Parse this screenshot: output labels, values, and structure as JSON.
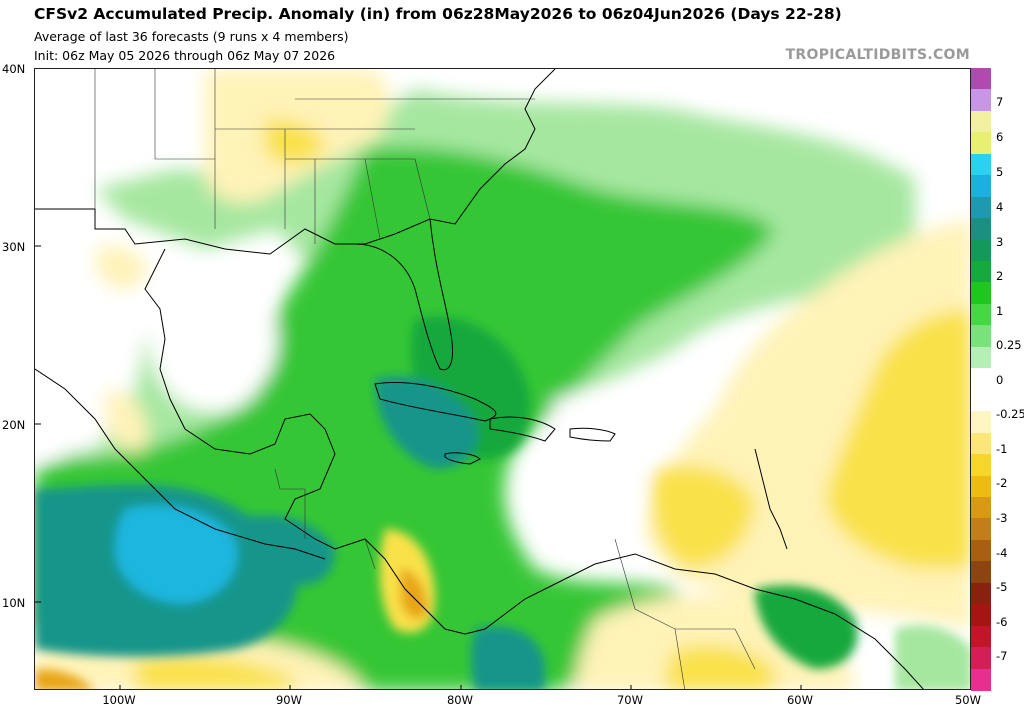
{
  "header": {
    "title": "CFSv2 Accumulated Precip. Anomaly (in) from 06z28May2026 to 06z04Jun2026 (Days 22-28)",
    "subtitle1": "Average of last 36 forecasts (9 runs x 4 members)",
    "subtitle2": "Init: 06z May 05 2026 through 06z May 07 2026",
    "credit": "TROPICALTIDBITS.COM"
  },
  "axes": {
    "lat_labels": [
      "40N",
      "30N",
      "20N",
      "10N"
    ],
    "lon_labels": [
      "100W",
      "90W",
      "80W",
      "70W",
      "60W",
      "50W"
    ]
  },
  "colorbar": {
    "labels": [
      "7",
      "6",
      "5",
      "4",
      "3",
      "2",
      "1",
      "0.25",
      "0",
      "-0.25",
      "-1",
      "-2",
      "-3",
      "-4",
      "-5",
      "-6",
      "-7"
    ],
    "colors": [
      "#b04ab0",
      "#c896e6",
      "#f0f0a0",
      "#e8f070",
      "#2ad2f2",
      "#1ab0e0",
      "#1d9ab0",
      "#1a9080",
      "#129a5a",
      "#14aa3c",
      "#1cc81c",
      "#44d844",
      "#7ae27a",
      "#b6efb6",
      "#ffffff",
      "#ffffff",
      "#fff5c0",
      "#fce678",
      "#f8d628",
      "#eebb10",
      "#d89a12",
      "#c27e18",
      "#a86010",
      "#8c4410",
      "#8a2010",
      "#a61414",
      "#c4142a",
      "#d61e56",
      "#ea2e90"
    ]
  },
  "map_colors": {
    "land_white": "#ffffff",
    "light_green": "#a6e7a0",
    "green": "#34c634",
    "dark_green": "#14a83c",
    "teal": "#16958a",
    "cyan": "#1ab6de",
    "light_yellow": "#fff3b8",
    "yellow": "#f9e14a",
    "orange": "#e7a518"
  }
}
